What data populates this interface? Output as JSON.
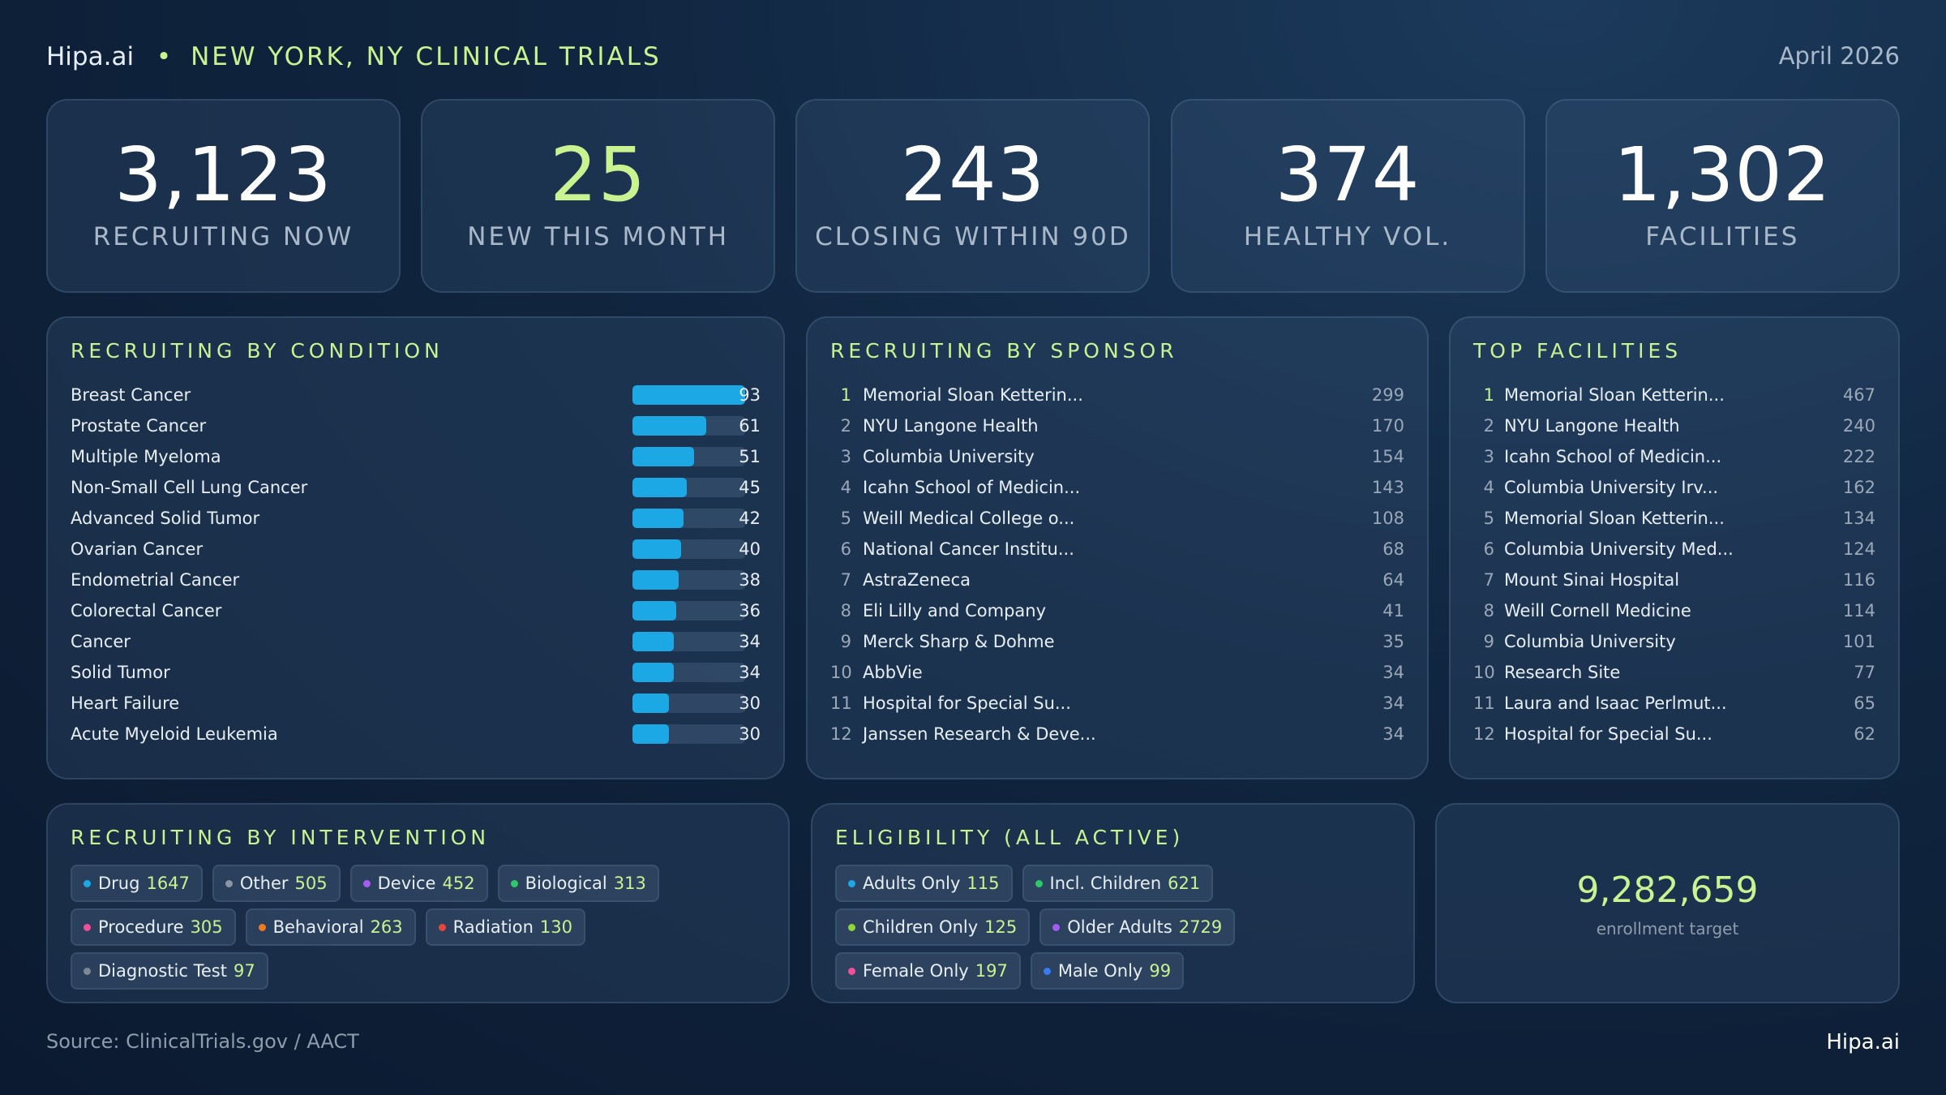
{
  "header": {
    "brand": "Hipa.ai",
    "bullet": "•",
    "title": "NEW YORK, NY CLINICAL TRIALS",
    "date": "April 2026"
  },
  "kpis": [
    {
      "value": "3,123",
      "label": "RECRUITING NOW",
      "color": "#ffffff"
    },
    {
      "value": "25",
      "label": "NEW THIS MONTH",
      "color": "#c9f291"
    },
    {
      "value": "243",
      "label": "CLOSING WITHIN 90D",
      "color": "#ffffff"
    },
    {
      "value": "374",
      "label": "HEALTHY VOL.",
      "color": "#ffffff"
    },
    {
      "value": "1,302",
      "label": "FACILITIES",
      "color": "#ffffff"
    }
  ],
  "conditions": {
    "title": "RECRUITING BY CONDITION",
    "color": "#1ba8e4",
    "rows": [
      {
        "name": "Breast Cancer",
        "value": 93
      },
      {
        "name": "Prostate Cancer",
        "value": 61
      },
      {
        "name": "Multiple Myeloma",
        "value": 51
      },
      {
        "name": "Non-Small Cell Lung Cancer",
        "value": 45
      },
      {
        "name": "Advanced Solid Tumor",
        "value": 42
      },
      {
        "name": "Ovarian Cancer",
        "value": 40
      },
      {
        "name": "Endometrial Cancer",
        "value": 38
      },
      {
        "name": "Colorectal Cancer",
        "value": 36
      },
      {
        "name": "Cancer",
        "value": 34
      },
      {
        "name": "Solid Tumor",
        "value": 34
      },
      {
        "name": "Heart Failure",
        "value": 30
      },
      {
        "name": "Acute Myeloid Leukemia",
        "value": 30
      }
    ]
  },
  "sponsors": {
    "title": "RECRUITING BY SPONSOR",
    "rows": [
      {
        "rank": 1,
        "name": "Memorial Sloan Ketterin...",
        "value": 299
      },
      {
        "rank": 2,
        "name": "NYU Langone Health",
        "value": 170
      },
      {
        "rank": 3,
        "name": "Columbia University",
        "value": 154
      },
      {
        "rank": 4,
        "name": "Icahn School of Medicin...",
        "value": 143
      },
      {
        "rank": 5,
        "name": "Weill Medical College o...",
        "value": 108
      },
      {
        "rank": 6,
        "name": "National Cancer Institu...",
        "value": 68
      },
      {
        "rank": 7,
        "name": "AstraZeneca",
        "value": 64
      },
      {
        "rank": 8,
        "name": "Eli Lilly and Company",
        "value": 41
      },
      {
        "rank": 9,
        "name": "Merck Sharp & Dohme",
        "value": 35
      },
      {
        "rank": 10,
        "name": "AbbVie",
        "value": 34
      },
      {
        "rank": 11,
        "name": "Hospital for Special Su...",
        "value": 34
      },
      {
        "rank": 12,
        "name": "Janssen Research & Deve...",
        "value": 34
      }
    ]
  },
  "facilities": {
    "title": "TOP FACILITIES",
    "rows": [
      {
        "rank": 1,
        "name": "Memorial Sloan Ketterin...",
        "value": 467
      },
      {
        "rank": 2,
        "name": "NYU Langone Health",
        "value": 240
      },
      {
        "rank": 3,
        "name": "Icahn School of Medicin...",
        "value": 222
      },
      {
        "rank": 4,
        "name": "Columbia University Irv...",
        "value": 162
      },
      {
        "rank": 5,
        "name": "Memorial Sloan Ketterin...",
        "value": 134
      },
      {
        "rank": 6,
        "name": "Columbia University Med...",
        "value": 124
      },
      {
        "rank": 7,
        "name": "Mount Sinai Hospital",
        "value": 116
      },
      {
        "rank": 8,
        "name": "Weill Cornell Medicine",
        "value": 114
      },
      {
        "rank": 9,
        "name": "Columbia University",
        "value": 101
      },
      {
        "rank": 10,
        "name": "Research Site",
        "value": 77
      },
      {
        "rank": 11,
        "name": "Laura and Isaac Perlmut...",
        "value": 65
      },
      {
        "rank": 12,
        "name": "Hospital for Special Su...",
        "value": 62
      }
    ]
  },
  "interventions": {
    "title": "RECRUITING BY INTERVENTION",
    "items": [
      {
        "name": "Drug",
        "value": 1647,
        "color": "#1ba8e4"
      },
      {
        "name": "Other",
        "value": 505,
        "color": "#8a94a3"
      },
      {
        "name": "Device",
        "value": 452,
        "color": "#a45cf0"
      },
      {
        "name": "Biological",
        "value": 313,
        "color": "#2ec86a"
      },
      {
        "name": "Procedure",
        "value": 305,
        "color": "#f0509a"
      },
      {
        "name": "Behavioral",
        "value": 263,
        "color": "#f07a1e"
      },
      {
        "name": "Radiation",
        "value": 130,
        "color": "#e8443a"
      },
      {
        "name": "Diagnostic Test",
        "value": 97,
        "color": "#7d8795"
      }
    ]
  },
  "eligibility": {
    "title": "ELIGIBILITY (ALL ACTIVE)",
    "items": [
      {
        "name": "Adults Only",
        "value": 115,
        "color": "#1ba8e4"
      },
      {
        "name": "Incl. Children",
        "value": 621,
        "color": "#2ec86a"
      },
      {
        "name": "Children Only",
        "value": 125,
        "color": "#8fd43a"
      },
      {
        "name": "Older Adults",
        "value": 2729,
        "color": "#a45cf0"
      },
      {
        "name": "Female Only",
        "value": 197,
        "color": "#f0509a"
      },
      {
        "name": "Male Only",
        "value": 99,
        "color": "#3a7cf0"
      }
    ]
  },
  "enrollment": {
    "value": "9,282,659",
    "label": "enrollment target"
  },
  "footer": {
    "source": "Source: ClinicalTrials.gov / AACT",
    "brand": "Hipa.ai"
  }
}
